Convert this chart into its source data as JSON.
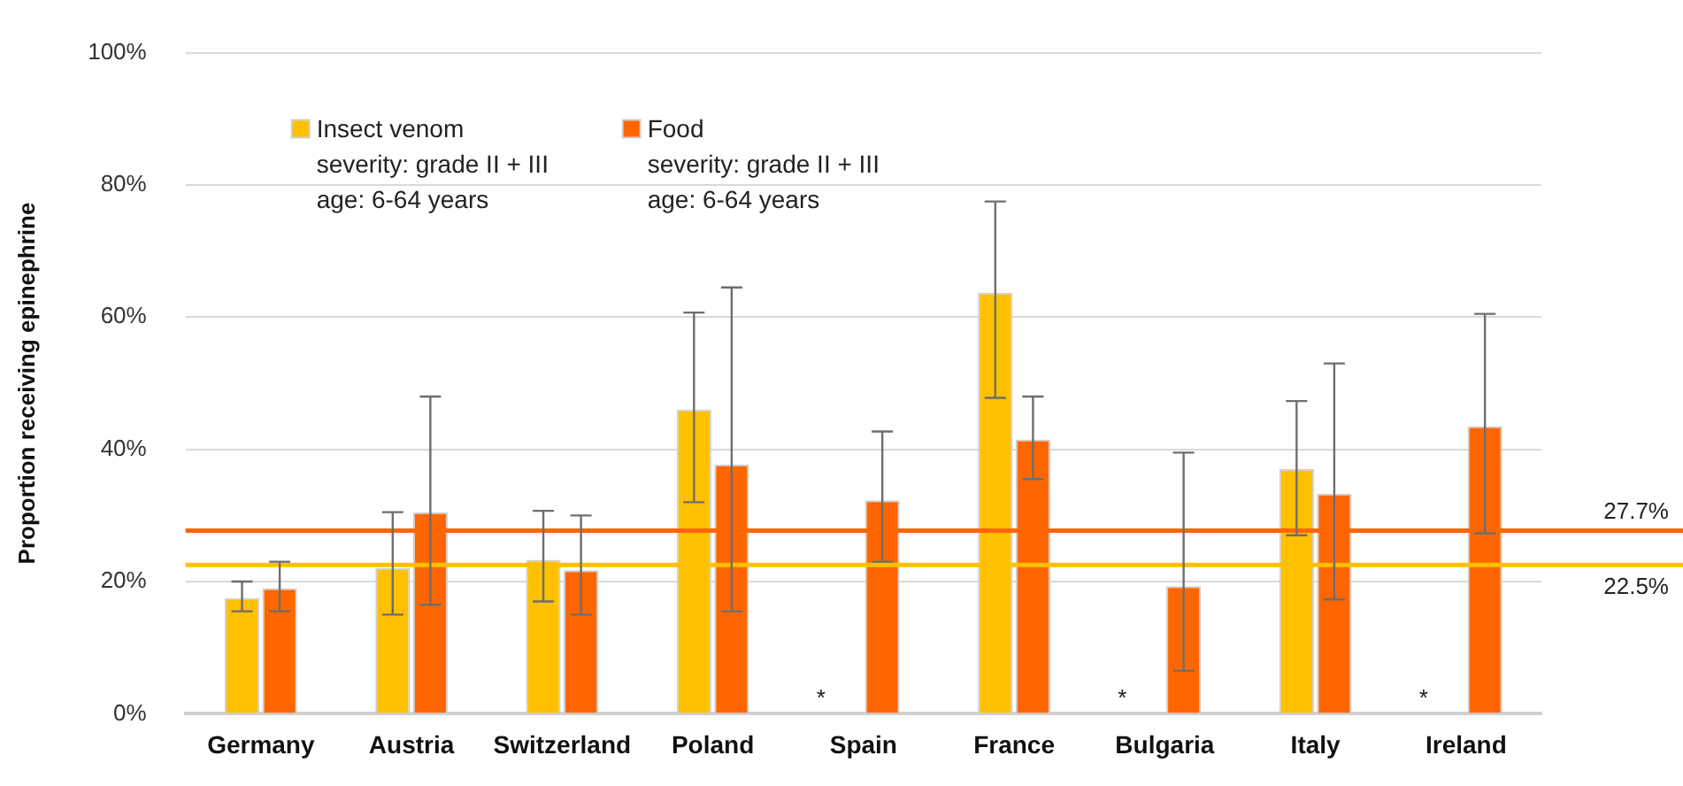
{
  "chart_data": {
    "type": "bar",
    "ylabel": "Proportion receiving epinephrine",
    "categories": [
      "Germany",
      "Austria",
      "Switzerland",
      "Poland",
      "Spain",
      "France",
      "Bulgaria",
      "Italy",
      "Ireland"
    ],
    "series": [
      {
        "name": "Insect venom\nseverity: grade II + III\nage: 6-64 years",
        "color": "#ffc000",
        "values": [
          17.5,
          22,
          23.3,
          46,
          null,
          63.7,
          null,
          37,
          null
        ],
        "errors": [
          [
            15.5,
            20
          ],
          [
            15,
            30.5
          ],
          [
            17,
            30.7
          ],
          [
            32,
            60.7
          ],
          null,
          [
            47.8,
            77.5
          ],
          null,
          [
            27,
            47.3
          ],
          null
        ]
      },
      {
        "name": "Food\nseverity: grade II + III\nage: 6-64 years",
        "color": "#ff6600",
        "values": [
          19,
          30.5,
          21.7,
          37.7,
          32.3,
          41.5,
          19.3,
          33.3,
          43.5
        ],
        "errors": [
          [
            15.5,
            23
          ],
          [
            16.5,
            48
          ],
          [
            15,
            30
          ],
          [
            15.5,
            64.5
          ],
          [
            23,
            42.7
          ],
          [
            35.5,
            48
          ],
          [
            6.5,
            39.5
          ],
          [
            17.3,
            53
          ],
          [
            27.3,
            60.5
          ]
        ]
      }
    ],
    "ylim": [
      0,
      100
    ],
    "yticks": [
      {
        "value": 0,
        "label": "0%"
      },
      {
        "value": 20,
        "label": "20%"
      },
      {
        "value": 40,
        "label": "40%"
      },
      {
        "value": 60,
        "label": "60%"
      },
      {
        "value": 80,
        "label": "80%"
      },
      {
        "value": 100,
        "label": "100%"
      }
    ],
    "grid": "y",
    "legend": "top left",
    "ref_lines": [
      {
        "axis": "y",
        "value": 27.7,
        "label": "27.7%",
        "color": "#ff6600"
      },
      {
        "axis": "y",
        "value": 22.5,
        "label": "22.5%",
        "color": "#ffc000"
      }
    ],
    "annotations": [
      {
        "text": "*",
        "x": "Spain",
        "y": 0
      },
      {
        "text": "*",
        "x": "Bulgaria",
        "y": 0
      },
      {
        "text": "*",
        "x": "Ireland",
        "y": 0
      }
    ]
  }
}
